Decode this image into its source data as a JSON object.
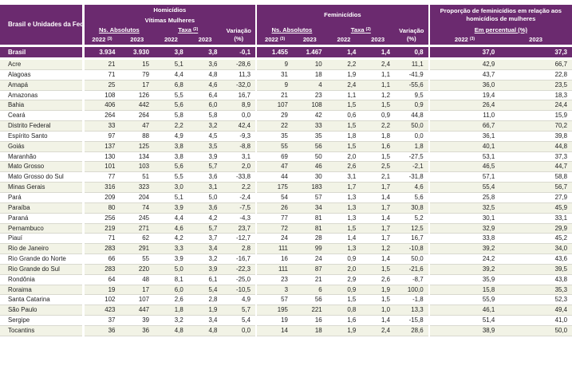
{
  "header": {
    "corner": "Brasil e Unidades da Federação",
    "homicidios_title": "Homicídios",
    "vitimas_title": "Vítimas Mulheres",
    "feminicidios_title": "Feminicídios",
    "proporcao_title": "Proporção de feminicídios em relação aos homicídios de mulheres",
    "ns_absolutos": "Ns. Absolutos",
    "taxa": "Taxa",
    "taxa_sup": "(2)",
    "variacao_line1": "Variação",
    "variacao_line2": "(%)",
    "em_percentual": "Em percentual (%)",
    "y2022": "2022",
    "y2022_sup": "(3)",
    "y2023": "2023"
  },
  "brasil": {
    "name": "Brasil",
    "h22": "3.934",
    "h23": "3.930",
    "ht22": "3,8",
    "ht23": "3,8",
    "hv": "-0,1",
    "f22": "1.455",
    "f23": "1.467",
    "ft22": "1,4",
    "ft23": "1,4",
    "fv": "0,8",
    "p22": "37,0",
    "p23": "37,3"
  },
  "rows": [
    {
      "name": "Acre",
      "h22": "21",
      "h23": "15",
      "ht22": "5,1",
      "ht23": "3,6",
      "hv": "-28,6",
      "f22": "9",
      "f23": "10",
      "ft22": "2,2",
      "ft23": "2,4",
      "fv": "11,1",
      "p22": "42,9",
      "p23": "66,7"
    },
    {
      "name": "Alagoas",
      "h22": "71",
      "h23": "79",
      "ht22": "4,4",
      "ht23": "4,8",
      "hv": "11,3",
      "f22": "31",
      "f23": "18",
      "ft22": "1,9",
      "ft23": "1,1",
      "fv": "-41,9",
      "p22": "43,7",
      "p23": "22,8"
    },
    {
      "name": "Amapá",
      "h22": "25",
      "h23": "17",
      "ht22": "6,8",
      "ht23": "4,6",
      "hv": "-32,0",
      "f22": "9",
      "f23": "4",
      "ft22": "2,4",
      "ft23": "1,1",
      "fv": "-55,6",
      "p22": "36,0",
      "p23": "23,5"
    },
    {
      "name": "Amazonas",
      "h22": "108",
      "h23": "126",
      "ht22": "5,5",
      "ht23": "6,4",
      "hv": "16,7",
      "f22": "21",
      "f23": "23",
      "ft22": "1,1",
      "ft23": "1,2",
      "fv": "9,5",
      "p22": "19,4",
      "p23": "18,3"
    },
    {
      "name": "Bahia",
      "h22": "406",
      "h23": "442",
      "ht22": "5,6",
      "ht23": "6,0",
      "hv": "8,9",
      "f22": "107",
      "f23": "108",
      "ft22": "1,5",
      "ft23": "1,5",
      "fv": "0,9",
      "p22": "26,4",
      "p23": "24,4"
    },
    {
      "name": "Ceará",
      "h22": "264",
      "h23": "264",
      "ht22": "5,8",
      "ht23": "5,8",
      "hv": "0,0",
      "f22": "29",
      "f23": "42",
      "ft22": "0,6",
      "ft23": "0,9",
      "fv": "44,8",
      "p22": "11,0",
      "p23": "15,9"
    },
    {
      "name": "Distrito Federal",
      "h22": "33",
      "h23": "47",
      "ht22": "2,2",
      "ht23": "3,2",
      "hv": "42,4",
      "f22": "22",
      "f23": "33",
      "ft22": "1,5",
      "ft23": "2,2",
      "fv": "50,0",
      "p22": "66,7",
      "p23": "70,2"
    },
    {
      "name": "Espírito Santo",
      "h22": "97",
      "h23": "88",
      "ht22": "4,9",
      "ht23": "4,5",
      "hv": "-9,3",
      "f22": "35",
      "f23": "35",
      "ft22": "1,8",
      "ft23": "1,8",
      "fv": "0,0",
      "p22": "36,1",
      "p23": "39,8"
    },
    {
      "name": "Goiás",
      "h22": "137",
      "h23": "125",
      "ht22": "3,8",
      "ht23": "3,5",
      "hv": "-8,8",
      "f22": "55",
      "f23": "56",
      "ft22": "1,5",
      "ft23": "1,6",
      "fv": "1,8",
      "p22": "40,1",
      "p23": "44,8"
    },
    {
      "name": "Maranhão",
      "h22": "130",
      "h23": "134",
      "ht22": "3,8",
      "ht23": "3,9",
      "hv": "3,1",
      "f22": "69",
      "f23": "50",
      "ft22": "2,0",
      "ft23": "1,5",
      "fv": "-27,5",
      "p22": "53,1",
      "p23": "37,3"
    },
    {
      "name": "Mato Grosso",
      "h22": "101",
      "h23": "103",
      "ht22": "5,6",
      "ht23": "5,7",
      "hv": "2,0",
      "f22": "47",
      "f23": "46",
      "ft22": "2,6",
      "ft23": "2,5",
      "fv": "-2,1",
      "p22": "46,5",
      "p23": "44,7"
    },
    {
      "name": "Mato Grosso do Sul",
      "h22": "77",
      "h23": "51",
      "ht22": "5,5",
      "ht23": "3,6",
      "hv": "-33,8",
      "f22": "44",
      "f23": "30",
      "ft22": "3,1",
      "ft23": "2,1",
      "fv": "-31,8",
      "p22": "57,1",
      "p23": "58,8"
    },
    {
      "name": "Minas Gerais",
      "h22": "316",
      "h23": "323",
      "ht22": "3,0",
      "ht23": "3,1",
      "hv": "2,2",
      "f22": "175",
      "f23": "183",
      "ft22": "1,7",
      "ft23": "1,7",
      "fv": "4,6",
      "p22": "55,4",
      "p23": "56,7"
    },
    {
      "name": "Pará",
      "h22": "209",
      "h23": "204",
      "ht22": "5,1",
      "ht23": "5,0",
      "hv": "-2,4",
      "f22": "54",
      "f23": "57",
      "ft22": "1,3",
      "ft23": "1,4",
      "fv": "5,6",
      "p22": "25,8",
      "p23": "27,9"
    },
    {
      "name": "Paraíba",
      "h22": "80",
      "h23": "74",
      "ht22": "3,9",
      "ht23": "3,6",
      "hv": "-7,5",
      "f22": "26",
      "f23": "34",
      "ft22": "1,3",
      "ft23": "1,7",
      "fv": "30,8",
      "p22": "32,5",
      "p23": "45,9"
    },
    {
      "name": "Paraná",
      "h22": "256",
      "h23": "245",
      "ht22": "4,4",
      "ht23": "4,2",
      "hv": "-4,3",
      "f22": "77",
      "f23": "81",
      "ft22": "1,3",
      "ft23": "1,4",
      "fv": "5,2",
      "p22": "30,1",
      "p23": "33,1"
    },
    {
      "name": "Pernambuco",
      "h22": "219",
      "h23": "271",
      "ht22": "4,6",
      "ht23": "5,7",
      "hv": "23,7",
      "f22": "72",
      "f23": "81",
      "ft22": "1,5",
      "ft23": "1,7",
      "fv": "12,5",
      "p22": "32,9",
      "p23": "29,9"
    },
    {
      "name": "Piauí",
      "h22": "71",
      "h23": "62",
      "ht22": "4,2",
      "ht23": "3,7",
      "hv": "-12,7",
      "f22": "24",
      "f23": "28",
      "ft22": "1,4",
      "ft23": "1,7",
      "fv": "16,7",
      "p22": "33,8",
      "p23": "45,2"
    },
    {
      "name": "Rio de Janeiro",
      "h22": "283",
      "h23": "291",
      "ht22": "3,3",
      "ht23": "3,4",
      "hv": "2,8",
      "f22": "111",
      "f23": "99",
      "ft22": "1,3",
      "ft23": "1,2",
      "fv": "-10,8",
      "p22": "39,2",
      "p23": "34,0"
    },
    {
      "name": "Rio Grande do Norte",
      "h22": "66",
      "h23": "55",
      "ht22": "3,9",
      "ht23": "3,2",
      "hv": "-16,7",
      "f22": "16",
      "f23": "24",
      "ft22": "0,9",
      "ft23": "1,4",
      "fv": "50,0",
      "p22": "24,2",
      "p23": "43,6"
    },
    {
      "name": "Rio Grande do Sul",
      "h22": "283",
      "h23": "220",
      "ht22": "5,0",
      "ht23": "3,9",
      "hv": "-22,3",
      "f22": "111",
      "f23": "87",
      "ft22": "2,0",
      "ft23": "1,5",
      "fv": "-21,6",
      "p22": "39,2",
      "p23": "39,5"
    },
    {
      "name": "Rondônia",
      "h22": "64",
      "h23": "48",
      "ht22": "8,1",
      "ht23": "6,1",
      "hv": "-25,0",
      "f22": "23",
      "f23": "21",
      "ft22": "2,9",
      "ft23": "2,6",
      "fv": "-8,7",
      "p22": "35,9",
      "p23": "43,8"
    },
    {
      "name": "Roraima",
      "h22": "19",
      "h23": "17",
      "ht22": "6,0",
      "ht23": "5,4",
      "hv": "-10,5",
      "f22": "3",
      "f23": "6",
      "ft22": "0,9",
      "ft23": "1,9",
      "fv": "100,0",
      "p22": "15,8",
      "p23": "35,3"
    },
    {
      "name": "Santa Catarina",
      "h22": "102",
      "h23": "107",
      "ht22": "2,6",
      "ht23": "2,8",
      "hv": "4,9",
      "f22": "57",
      "f23": "56",
      "ft22": "1,5",
      "ft23": "1,5",
      "fv": "-1,8",
      "p22": "55,9",
      "p23": "52,3"
    },
    {
      "name": "São Paulo",
      "h22": "423",
      "h23": "447",
      "ht22": "1,8",
      "ht23": "1,9",
      "hv": "5,7",
      "f22": "195",
      "f23": "221",
      "ft22": "0,8",
      "ft23": "1,0",
      "fv": "13,3",
      "p22": "46,1",
      "p23": "49,4"
    },
    {
      "name": "Sergipe",
      "h22": "37",
      "h23": "39",
      "ht22": "3,2",
      "ht23": "3,4",
      "hv": "5,4",
      "f22": "19",
      "f23": "16",
      "ft22": "1,6",
      "ft23": "1,4",
      "fv": "-15,8",
      "p22": "51,4",
      "p23": "41,0"
    },
    {
      "name": "Tocantins",
      "h22": "36",
      "h23": "36",
      "ht22": "4,8",
      "ht23": "4,8",
      "hv": "0,0",
      "f22": "14",
      "f23": "18",
      "ft22": "1,9",
      "ft23": "2,4",
      "fv": "28,6",
      "p22": "38,9",
      "p23": "50,0"
    }
  ]
}
